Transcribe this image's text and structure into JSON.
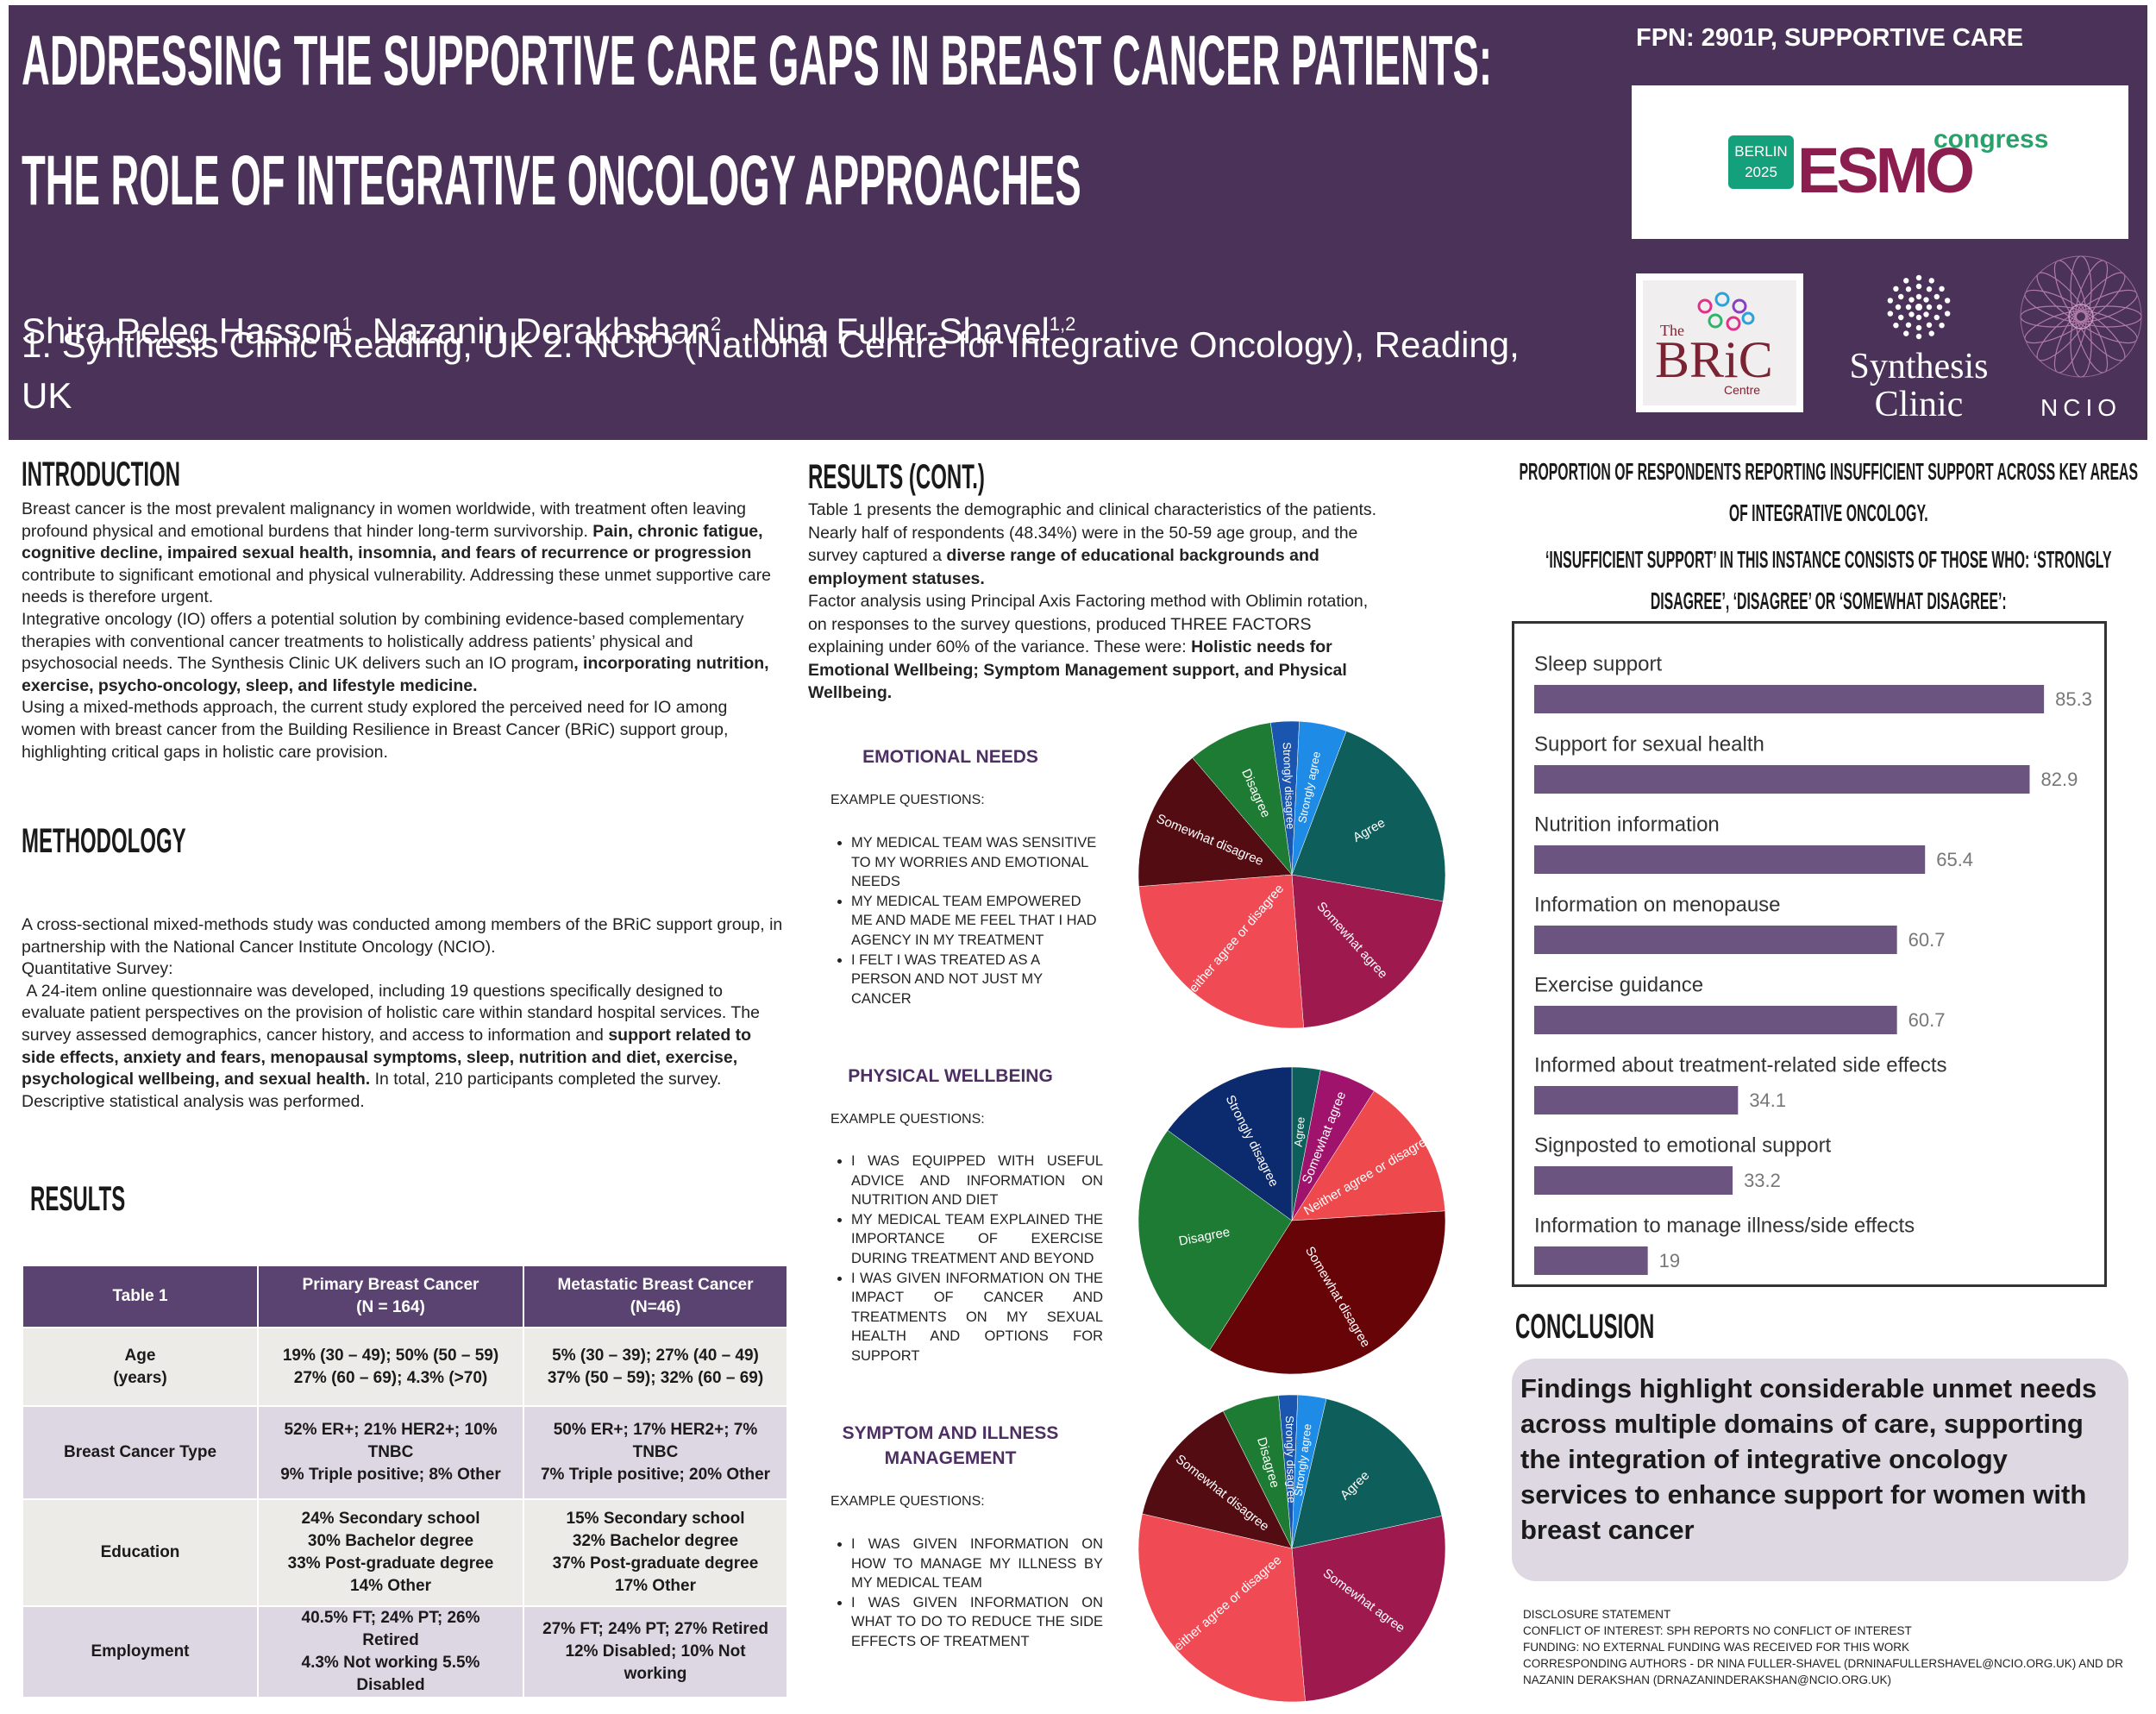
{
  "header": {
    "title_lines": [
      "ADDRESSING THE SUPPORTIVE CARE GAPS IN BREAST CANCER PATIENTS:",
      "THE ROLE OF INTEGRATIVE ONCOLOGY APPROACHES"
    ],
    "authors": [
      {
        "name": "Shira Peleg Hasson",
        "sup": "1"
      },
      {
        "name": ", Nazanin Derakhshan",
        "sup": "2"
      },
      {
        "name": ",  Nina Fuller-Shavel",
        "sup": "1,2"
      }
    ],
    "affiliations": "1. Synthesis Clinic Reading, UK 2. NCIO (National Centre for Integrative Oncology), Reading, UK",
    "poster_id": "FPN: 2901P, SUPPORTIVE CARE",
    "logos": {
      "esmo": {
        "city": "BERLIN",
        "year": "2025",
        "name": "ESMO",
        "suffix": "congress"
      },
      "bric": {
        "the": "The",
        "name": "BRiC",
        "centre": "Centre"
      },
      "synthesis": [
        "Synthesis",
        "Clinic"
      ],
      "ncio": "NCIO"
    }
  },
  "introduction": {
    "heading": "INTRODUCTION",
    "paragraphs": [
      [
        "Breast cancer is the most prevalent malignancy in women worldwide, with treatment often leaving profound physical and emotional burdens that hinder long-term survivorship. ",
        "Pain, chronic fatigue, cognitive decline, impaired sexual health, insomnia, and fears of recurrence or progression",
        " contribute to significant emotional and physical vulnerability. Addressing these unmet supportive care needs is therefore urgent."
      ],
      [
        "Integrative oncology (IO) offers a potential solution by combining evidence-based complementary therapies with conventional cancer treatments to holistically address patients’ physical and psychosocial needs. The Synthesis Clinic UK delivers such an IO program",
        ", incorporating nutrition, exercise, psycho-oncology, sleep, and lifestyle medicine."
      ],
      [
        "Using a mixed-methods approach, the current study explored the perceived need for IO among women with breast cancer from the Building Resilience in Breast Cancer (BRiC) support group, highlighting critical gaps in holistic care provision."
      ]
    ]
  },
  "methodology": {
    "heading": "METHODOLOGY",
    "paragraphs": [
      [
        "A cross-sectional mixed-methods study was conducted among members of the BRiC support group, in partnership with the National Cancer Institute Oncology (NCIO)."
      ],
      [
        "Quantitative Survey:"
      ],
      [
        " A 24-item online questionnaire was developed, including 19 questions specifically designed to evaluate patient perspectives on the provision of holistic care within standard hospital services. The survey assessed demographics, cancer history, and access to information and ",
        "support related to side effects, anxiety and fears, menopausal symptoms, sleep, nutrition and diet, exercise, psychological wellbeing, and sexual health.",
        " In total, 210 participants completed the survey. Descriptive statistical analysis was performed."
      ]
    ]
  },
  "results": {
    "heading": "RESULTS",
    "table": {
      "header": [
        [
          "Table 1"
        ],
        [
          "Primary Breast Cancer",
          "(N = 164)"
        ],
        [
          "Metastatic Breast Cancer",
          "(N=46)"
        ]
      ],
      "rows": [
        [
          [
            "Age",
            "(years)"
          ],
          [
            "19% (30 – 49); 50% (50 – 59)",
            "27% (60 – 69); 4.3% (>70)"
          ],
          [
            "5% (30 – 39); 27% (40 – 49)",
            "37% (50 – 59); 32% (60 – 69)"
          ]
        ],
        [
          [
            "Breast Cancer Type"
          ],
          [
            "52% ER+; 21% HER2+; 10%",
            "TNBC",
            "9% Triple positive; 8% Other"
          ],
          [
            "50% ER+; 17% HER2+; 7%",
            "TNBC",
            "7% Triple positive; 20% Other"
          ]
        ],
        [
          [
            "Education"
          ],
          [
            "24% Secondary school",
            "30% Bachelor degree",
            "33% Post-graduate degree",
            "14% Other"
          ],
          [
            "15% Secondary school",
            "32% Bachelor degree",
            "37% Post-graduate degree",
            "17% Other"
          ]
        ],
        [
          [
            "Employment"
          ],
          [
            "40.5% FT; 24% PT; 26%",
            "Retired",
            "4.3% Not working 5.5%",
            "Disabled"
          ],
          [
            "27% FT; 24% PT; 27% Retired",
            "12% Disabled; 10% Not",
            "working"
          ]
        ]
      ]
    }
  },
  "results_cont": {
    "heading": "RESULTS (CONT.)",
    "paragraphs": [
      [
        "Table 1 presents the demographic and clinical characteristics of the patients. Nearly half of respondents (48.34%) were in the 50-59 age group, and the survey captured a ",
        "diverse range of educational backgrounds and employment statuses."
      ],
      [
        "Factor analysis using Principal Axis Factoring method with Oblimin rotation, on responses to the survey questions, produced THREE FACTORS explaining under 60% of the variance. These were: ",
        "Holistic needs for Emotional Wellbeing; Symptom Management support, and Physical Wellbeing."
      ]
    ]
  },
  "sections": [
    {
      "heading": "EMOTIONAL NEEDS",
      "example_label": "EXAMPLE QUESTIONS:",
      "questions": [
        "MY MEDICAL TEAM WAS SENSITIVE TO MY WORRIES AND EMOTIONAL NEEDS",
        "MY MEDICAL TEAM EMPOWERED ME AND MADE ME FEEL THAT I HAD AGENCY IN MY TREATMENT",
        "I FELT I WAS TREATED AS A PERSON AND NOT JUST MY CANCER"
      ]
    },
    {
      "heading": "PHYSICAL WELLBEING",
      "example_label": "EXAMPLE QUESTIONS:",
      "questions": [
        "I WAS EQUIPPED WITH USEFUL ADVICE AND INFORMATION ON NUTRITION AND DIET",
        "MY MEDICAL TEAM EXPLAINED THE IMPORTANCE OF EXERCISE DURING TREATMENT AND BEYOND",
        "I WAS GIVEN INFORMATION ON THE IMPACT OF CANCER AND TREATMENTS ON MY SEXUAL HEALTH AND OPTIONS FOR SUPPORT"
      ]
    },
    {
      "heading": "SYMPTOM AND ILLNESS MANAGEMENT",
      "example_label": "EXAMPLE QUESTIONS:",
      "questions": [
        "I WAS GIVEN INFORMATION ON HOW TO MANAGE MY ILLNESS BY MY MEDICAL TEAM",
        "I WAS GIVEN INFORMATION ON WHAT TO DO TO REDUCE THE SIDE EFFECTS OF TREATMENT"
      ]
    }
  ],
  "chart_data": [
    {
      "type": "pie",
      "categories": [
        "Strongly disagree",
        "Strongly agree",
        "Agree",
        "Somewhat agree",
        "Neither agree or disagree",
        "Somewhat disagree",
        "Disagree"
      ],
      "values": [
        3,
        5,
        22,
        21,
        25,
        15,
        9
      ],
      "colors": [
        "#1a55b0",
        "#1e8be6",
        "#0e5e5b",
        "#9e1a4e",
        "#f04a55",
        "#520c12",
        "#1e7b34"
      ]
    },
    {
      "type": "pie",
      "categories": [
        "Agree",
        "Somewhat agree",
        "Neither agree or disagree",
        "Somewhat disagree",
        "Disagree",
        "Strongly disagree"
      ],
      "values": [
        3,
        6,
        15,
        35,
        26,
        15
      ],
      "colors": [
        "#0e5e5b",
        "#a0136c",
        "#ee4a4e",
        "#660408",
        "#1e7b34",
        "#0c2a6e"
      ]
    },
    {
      "type": "pie",
      "categories": [
        "Strongly disagree",
        "Strongly agree",
        "Agree",
        "Somewhat agree",
        "Neither agree or disagree",
        "Somewhat disagree",
        "Disagree"
      ],
      "values": [
        2,
        3,
        18,
        27,
        30,
        14,
        6
      ],
      "colors": [
        "#1a55b0",
        "#1e8be6",
        "#0e5e5b",
        "#9e1a4e",
        "#f04a55",
        "#520c12",
        "#1e7b34"
      ]
    },
    {
      "type": "bar",
      "orientation": "horizontal",
      "title": "PROPORTION OF RESPONDENTS REPORTING INSUFFICIENT SUPPORT ACROSS KEY AREAS OF INTEGRATIVE ONCOLOGY.",
      "subtitle": "‘INSUFFICIENT SUPPORT’ IN THIS INSTANCE CONSISTS OF THOSE WHO: ‘STRONGLY DISAGREE’, ‘DISAGREE’ OR ‘SOMEWHAT DISAGREE’:",
      "categories": [
        "Sleep support",
        "Support for sexual health",
        "Nutrition information",
        "Information on menopause",
        "Exercise guidance",
        "Informed about treatment-related side effects",
        "Signposted to emotional support",
        "Information to manage illness/side effects"
      ],
      "values": [
        85.3,
        82.9,
        65.4,
        60.7,
        60.7,
        34.1,
        33.2,
        19
      ],
      "color": "#6b5580"
    }
  ],
  "conclusion": {
    "heading": "CONCLUSION",
    "text": "Findings highlight considerable unmet needs across multiple domains of care, supporting the integration of integrative oncology services to enhance support for women with breast cancer"
  },
  "disclosure": [
    "DISCLOSURE STATEMENT",
    "CONFLICT OF INTEREST: SPH REPORTS NO CONFLICT OF INTEREST",
    "FUNDING: NO EXTERNAL FUNDING WAS RECEIVED FOR THIS WORK",
    "CORRESPONDING AUTHORS - DR NINA FULLER-SHAVEL (DRNINAFULLERSHAVEL@NCIO.ORG.UK) AND DR NAZANIN DERAKSHAN (DRNAZANINDERAKSHAN@NCIO.ORG.UK)"
  ]
}
